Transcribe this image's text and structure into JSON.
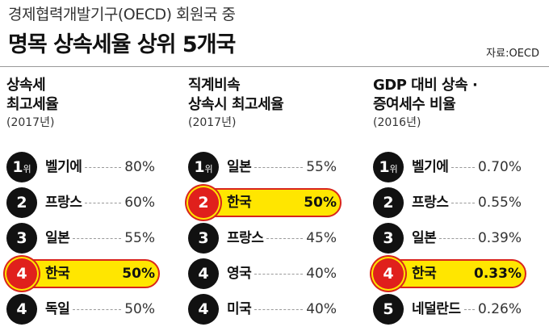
{
  "header": {
    "subtitle": "경제협력개발기구(OECD) 회원국 중",
    "title": "명목 상속세율 상위 5개국",
    "source": "자료:OECD"
  },
  "columns": [
    {
      "line1": "상속세",
      "line2": "최고세율",
      "year": "(2017년)",
      "rows": [
        {
          "rank": "1",
          "suffix": "위",
          "name": "벨기에",
          "value": "80%",
          "highlight": false
        },
        {
          "rank": "2",
          "suffix": "",
          "name": "프랑스",
          "value": "60%",
          "highlight": false
        },
        {
          "rank": "3",
          "suffix": "",
          "name": "일본",
          "value": "55%",
          "highlight": false
        },
        {
          "rank": "4",
          "suffix": "",
          "name": "한국",
          "value": "50%",
          "highlight": true
        },
        {
          "rank": "4",
          "suffix": "",
          "name": "독일",
          "value": "50%",
          "highlight": false
        }
      ]
    },
    {
      "line1": "직계비속",
      "line2": "상속시 최고세율",
      "year": "(2017년)",
      "rows": [
        {
          "rank": "1",
          "suffix": "위",
          "name": "일본",
          "value": "55%",
          "highlight": false
        },
        {
          "rank": "2",
          "suffix": "",
          "name": "한국",
          "value": "50%",
          "highlight": true
        },
        {
          "rank": "3",
          "suffix": "",
          "name": "프랑스",
          "value": "45%",
          "highlight": false
        },
        {
          "rank": "4",
          "suffix": "",
          "name": "영국",
          "value": "40%",
          "highlight": false
        },
        {
          "rank": "4",
          "suffix": "",
          "name": "미국",
          "value": "40%",
          "highlight": false
        }
      ]
    },
    {
      "line1": "GDP 대비 상속 ·",
      "line2": "증여세수 비율",
      "year": "(2016년)",
      "rows": [
        {
          "rank": "1",
          "suffix": "위",
          "name": "벨기에",
          "value": "0.70%",
          "highlight": false
        },
        {
          "rank": "2",
          "suffix": "",
          "name": "프랑스",
          "value": "0.55%",
          "highlight": false
        },
        {
          "rank": "3",
          "suffix": "",
          "name": "일본",
          "value": "0.39%",
          "highlight": false
        },
        {
          "rank": "4",
          "suffix": "",
          "name": "한국",
          "value": "0.33%",
          "highlight": true
        },
        {
          "rank": "5",
          "suffix": "",
          "name": "네덜란드",
          "value": "0.26%",
          "highlight": false
        }
      ]
    }
  ],
  "colors": {
    "circle": "#111111",
    "highlight_fill": "#ffe600",
    "highlight_border": "#d9251c",
    "highlight_circle": "#e0201c"
  }
}
